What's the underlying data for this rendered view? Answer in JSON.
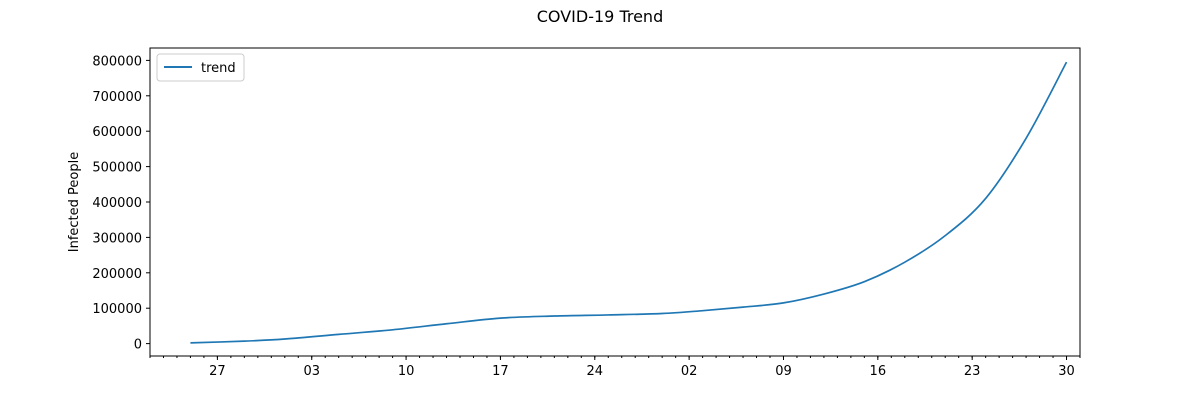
{
  "chart_data": {
    "type": "line",
    "title": "COVID-19 Trend",
    "xlabel": "",
    "ylabel": "Infected People",
    "legend": {
      "position": "top-left",
      "entries": [
        "trend"
      ]
    },
    "grid": false,
    "ylim": [
      -35000,
      835000
    ],
    "xlim": [
      "2020-01-22",
      "2020-03-31"
    ],
    "x_ticks": [
      "27",
      "03",
      "10",
      "17",
      "24",
      "02",
      "09",
      "16",
      "23",
      "30"
    ],
    "x_tick_dates": [
      "2020-01-27",
      "2020-02-03",
      "2020-02-10",
      "2020-02-17",
      "2020-02-24",
      "2020-03-02",
      "2020-03-09",
      "2020-03-16",
      "2020-03-23",
      "2020-03-30"
    ],
    "y_ticks": [
      "0",
      "100000",
      "200000",
      "300000",
      "400000",
      "500000",
      "600000",
      "700000",
      "800000"
    ],
    "series": [
      {
        "name": "trend",
        "color": "#1f77b4",
        "points": [
          [
            "2020-01-25",
            2000
          ],
          [
            "2020-01-29",
            7000
          ],
          [
            "2020-02-01",
            13000
          ],
          [
            "2020-02-05",
            26000
          ],
          [
            "2020-02-09",
            39000
          ],
          [
            "2020-02-13",
            56000
          ],
          [
            "2020-02-17",
            72000
          ],
          [
            "2020-02-21",
            78000
          ],
          [
            "2020-02-25",
            81000
          ],
          [
            "2020-02-29",
            85000
          ],
          [
            "2020-03-03",
            93000
          ],
          [
            "2020-03-06",
            103000
          ],
          [
            "2020-03-09",
            115000
          ],
          [
            "2020-03-12",
            140000
          ],
          [
            "2020-03-15",
            175000
          ],
          [
            "2020-03-18",
            230000
          ],
          [
            "2020-03-21",
            305000
          ],
          [
            "2020-03-24",
            410000
          ],
          [
            "2020-03-27",
            580000
          ],
          [
            "2020-03-30",
            795000
          ]
        ]
      }
    ]
  }
}
